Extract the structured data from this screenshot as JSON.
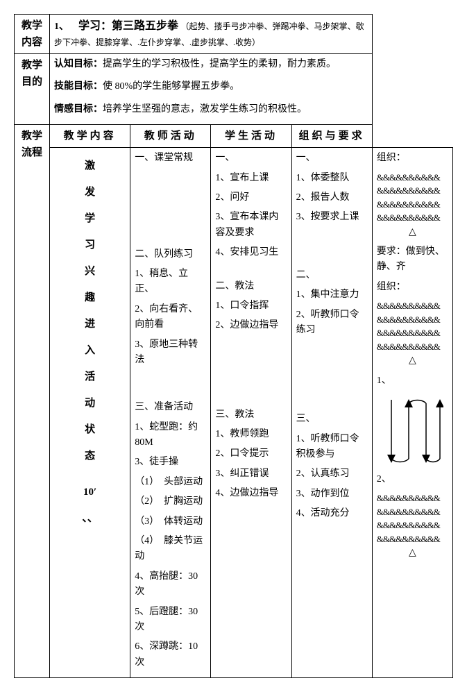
{
  "header": {
    "content_label": "教学内容",
    "lesson_no": "1、",
    "lesson_title": "学习：第三路五步拳",
    "lesson_sub": "（起势、搂手弓步冲拳、弹踢冲拳、马步架掌、歇步下冲拳、提膝穿掌、.左仆步穿掌、.虚步挑掌、.收势）"
  },
  "goals": {
    "label": "教学目的",
    "cognitive_l": "认知目标：",
    "cognitive_t": "提高学生的学习积极性，提高学生的柔韧，耐力素质。",
    "skill_l": "技能目标：",
    "skill_t": "使 80%的学生能够掌握五步拳。",
    "emotion_l": "情感目标：",
    "emotion_t": "培养学生坚强的意志，激发学生练习的积极性。"
  },
  "flow": {
    "label": "教学流程",
    "h_content": "教学内容",
    "h_teacher": "教师活动",
    "h_student": "学生活动",
    "h_org": "组织与要求"
  },
  "phase1": {
    "side": [
      "激",
      "发",
      "学",
      "习",
      "兴",
      "趣",
      "进",
      "入",
      "活",
      "动",
      "状",
      "态",
      "",
      "10′",
      "、、"
    ],
    "content": {
      "s1_title": "一、课堂常规",
      "s2_title": "二、队列练习",
      "s2_1": "1、稍息、立正、",
      "s2_2": "2、向右看齐、向前看",
      "s2_3": "3、原地三种转法",
      "s3_title": "三、准备活动",
      "s3_1": "1、蛇型跑：约 80M",
      "s3_3": "3、徒手操",
      "s3_a": "（1）　头部运动",
      "s3_b": "（2）　扩胸运动",
      "s3_c": "（3）　体转运动",
      "s3_d": "（4）　膝关节运动",
      "s3_4": "4、高抬腿：30 次",
      "s3_5": "5、后蹬腿：30 次",
      "s3_6": "6、深蹲跳：10 次"
    },
    "teacher": {
      "s1_title": "一、",
      "s1_1": "1、宣布上课",
      "s1_2": "2、问好",
      "s1_3": "3、宣布本课内容及要求",
      "s1_4": "4、安排见习生",
      "s2_title": "二、教法",
      "s2_1": "1、口令指挥",
      "s2_2": "2、边做边指导",
      "s3_title": "三、教法",
      "s3_1": "1、教师领跑",
      "s3_2": "2、口令提示",
      "s3_3": "3、纠正错误",
      "s3_4": "4、边做边指导"
    },
    "student": {
      "s1_title": "一、",
      "s1_1": "1、体委整队",
      "s1_2": "2、报告人数",
      "s1_3": "3、按要求上课",
      "s2_title": "二、",
      "s2_1": "1、集中注意力",
      "s2_2": "2、听教师口令练习",
      "s3_title": "三、",
      "s3_1": "1、听教师口令积极参与",
      "s3_2": "2、认真练习",
      "s3_3": "3、动作到位",
      "s3_4": "4、活动充分"
    },
    "org": {
      "o_label": "组织：",
      "req_label": "要求：做到快、静、齐",
      "o_label2": "组织：",
      "one": "1、",
      "two": "2、",
      "amp_row": "&&&&&&&&&&",
      "tri": "△"
    }
  }
}
